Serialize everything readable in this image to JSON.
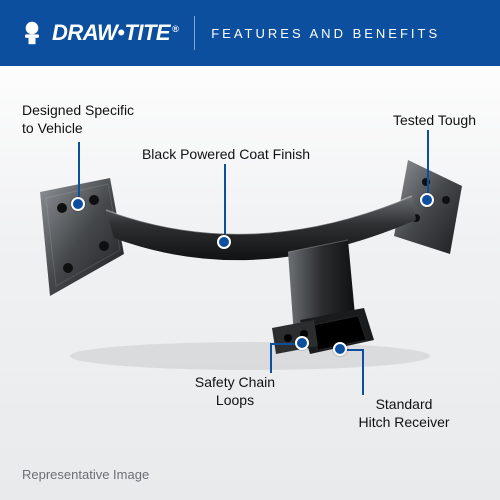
{
  "header": {
    "brand_main": "DRAW",
    "brand_tail": "TITE",
    "tagline": "FEATURES AND BENEFITS",
    "bg": "#0b4f9e",
    "accent": "#0b4f9e"
  },
  "callouts": {
    "c1": "Designed Specific\nto Vehicle",
    "c2": "Black Powered Coat Finish",
    "c3": "Tested Tough",
    "c4": "Safety Chain\nLoops",
    "c5": "Standard\nHitch Receiver"
  },
  "footer": {
    "rep": "Representative Image"
  },
  "colors": {
    "text": "#111111",
    "muted": "#6b7076",
    "hitch_dark": "#2a2c2e",
    "hitch_mid": "#4c4f52",
    "hitch_light": "#9ea2a6"
  }
}
